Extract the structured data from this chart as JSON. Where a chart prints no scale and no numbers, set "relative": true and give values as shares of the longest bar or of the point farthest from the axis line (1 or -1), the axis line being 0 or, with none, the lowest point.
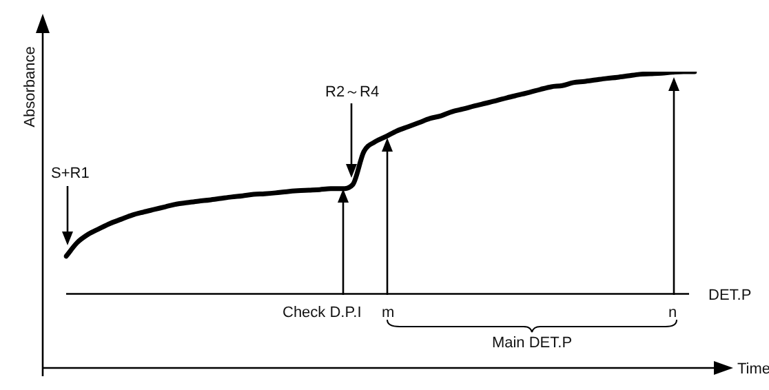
{
  "chart_data": {
    "type": "line",
    "relative": true,
    "xlabel": "Time",
    "ylabel": "Absorbance",
    "categories": [
      null,
      null,
      null,
      null,
      null,
      null,
      null,
      null,
      null,
      null,
      null,
      null,
      null,
      null,
      null,
      null,
      null,
      null,
      null,
      null,
      null,
      null,
      null,
      null,
      null,
      null,
      null,
      null,
      null,
      null,
      null,
      null,
      null,
      null,
      null,
      null,
      null,
      null,
      null,
      null,
      null,
      null,
      null,
      null,
      null,
      null,
      null,
      null,
      null,
      null,
      null,
      null,
      null,
      null,
      null,
      null,
      null,
      null
    ],
    "series": [
      {
        "color": "#000000",
        "values": [
          0.377,
          0.423,
          0.451,
          0.47,
          0.488,
          0.502,
          0.516,
          0.526,
          0.535,
          0.544,
          0.553,
          0.558,
          0.563,
          0.567,
          0.572,
          0.577,
          0.581,
          0.586,
          0.588,
          0.591,
          0.595,
          0.598,
          0.6,
          0.602,
          0.605,
          0.605,
          0.619,
          0.73,
          0.763,
          0.781,
          0.8,
          0.814,
          0.828,
          0.842,
          0.851,
          0.865,
          0.874,
          0.884,
          0.893,
          0.902,
          0.912,
          0.921,
          0.93,
          0.94,
          0.949,
          0.953,
          0.963,
          0.967,
          0.972,
          0.977,
          0.981,
          0.986,
          0.991,
          0.993,
          0.995,
          0.998,
          1,
          1
        ]
      }
    ],
    "ref_lines": [
      {
        "axis": "y",
        "value": 0.25,
        "label": "DET.P",
        "color": "#000000"
      }
    ],
    "annotations": [
      "S+R1",
      "R2～R4",
      "Check D.P.I",
      "m",
      "n",
      "Main DET.P"
    ],
    "legend": false,
    "marker": "none",
    "line_style": "solid"
  }
}
